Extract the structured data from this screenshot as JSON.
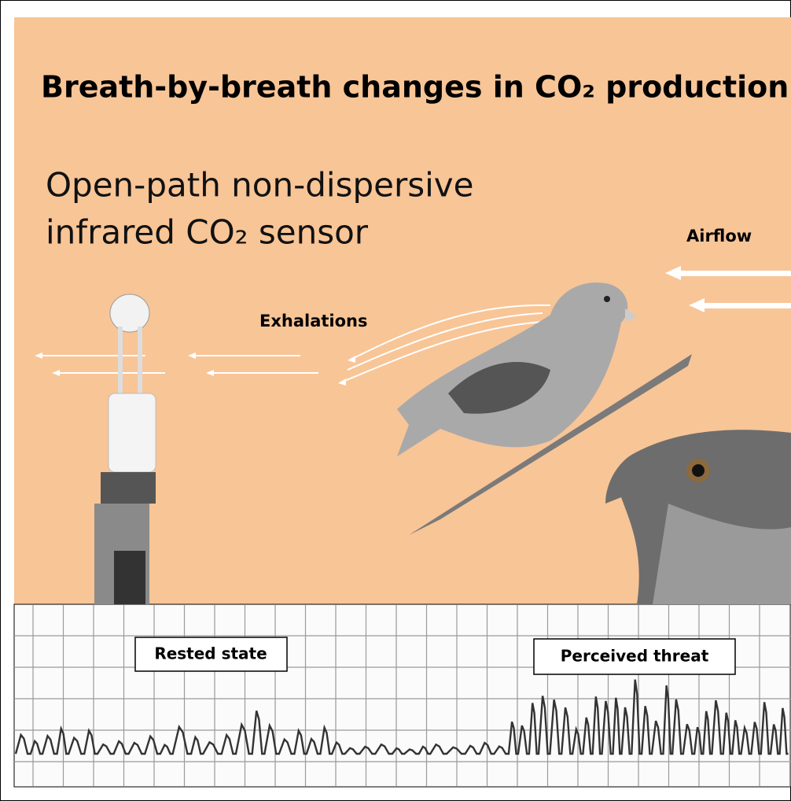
{
  "header": {
    "title": "Breath-by-breath changes in CO₂ production"
  },
  "sensor": {
    "lines": [
      "Open-path non-dispersive",
      "infrared CO₂ sensor"
    ]
  },
  "labels": {
    "airflow": "Airflow",
    "exhalations": "Exhalations"
  },
  "trace": {
    "rested": "Rested state",
    "threat": "Perceived threat"
  }
}
